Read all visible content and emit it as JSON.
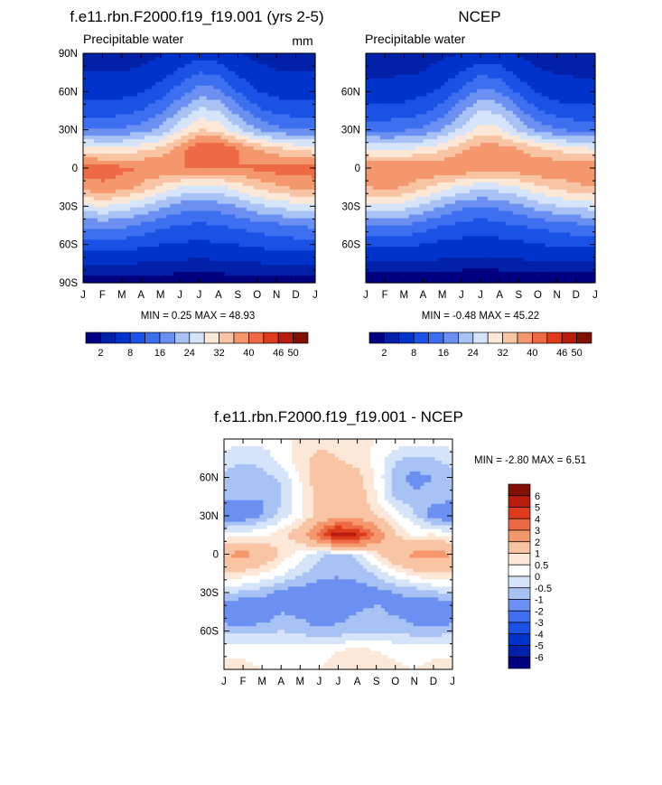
{
  "chart_data": [
    {
      "type": "heatmap",
      "id": "model",
      "title": "f.e11.rbn.F2000.f19_f19.001 (yrs 2-5)",
      "subtitle": "Precipitable water",
      "units": "mm",
      "x_tick_labels": [
        "J",
        "F",
        "M",
        "A",
        "M",
        "J",
        "J",
        "A",
        "S",
        "O",
        "N",
        "D",
        "J"
      ],
      "y_tick_labels": [
        "90N",
        "60N",
        "30N",
        "0",
        "30S",
        "60S",
        "90S"
      ],
      "y_tick_values": [
        90,
        60,
        30,
        0,
        -30,
        -60,
        -90
      ],
      "xlim": [
        0,
        12
      ],
      "ylim": [
        -90,
        90
      ],
      "min_max_text": "MIN =   0.25 MAX =  48.93",
      "min": 0.25,
      "max": 48.93,
      "colorbar_labels": [
        "2",
        "8",
        "16",
        "24",
        "32",
        "40",
        "46",
        "50"
      ],
      "colorbar_colors": [
        "#000080",
        "#0021a8",
        "#0033cc",
        "#1a52e6",
        "#3d6ff0",
        "#6b90f2",
        "#a8c2f5",
        "#d6e4fa",
        "#fde8d8",
        "#f9c4a4",
        "#f4976c",
        "#ee6a45",
        "#de3a1c",
        "#b81c0c",
        "#801000"
      ],
      "levels": [
        2,
        4,
        8,
        12,
        16,
        20,
        24,
        28,
        32,
        36,
        40,
        44,
        46,
        50
      ],
      "grid_months": [
        "J",
        "F",
        "M",
        "A",
        "M",
        "J",
        "J",
        "A",
        "S",
        "O",
        "N",
        "D",
        "J"
      ],
      "grid_lats": [
        90,
        75,
        60,
        45,
        30,
        15,
        0,
        -15,
        -30,
        -45,
        -60,
        -75,
        -90
      ],
      "values": [
        [
          2.5,
          2.5,
          2.5,
          2.8,
          3.5,
          5,
          6,
          5.5,
          4,
          3,
          2.6,
          2.5,
          2.5
        ],
        [
          4,
          4,
          4,
          4.5,
          6,
          9,
          12,
          11,
          7,
          5,
          4.2,
          4,
          4
        ],
        [
          6,
          6,
          6.5,
          7.5,
          10,
          14,
          18,
          17,
          12,
          8,
          6.5,
          6,
          6
        ],
        [
          10,
          10,
          10.5,
          12,
          15,
          20,
          25,
          24,
          18,
          13,
          11,
          10,
          10
        ],
        [
          16,
          16,
          16.5,
          18,
          21,
          27,
          32,
          31,
          25,
          20,
          17,
          16,
          16
        ],
        [
          30,
          29,
          29,
          31,
          33,
          38,
          44,
          44,
          40,
          36,
          33,
          31,
          30
        ],
        [
          42,
          42,
          41,
          40,
          40,
          40,
          40,
          40,
          40,
          41,
          42,
          42,
          42
        ],
        [
          38,
          39,
          38,
          35,
          31,
          28,
          26,
          27,
          30,
          33,
          35,
          37,
          38
        ],
        [
          27,
          28,
          27,
          24,
          21,
          18,
          17,
          18,
          20,
          23,
          25,
          26,
          27
        ],
        [
          17,
          17,
          17,
          15,
          13,
          12,
          11,
          12,
          13,
          14,
          15,
          16,
          17
        ],
        [
          10,
          10,
          10,
          9,
          8,
          7.5,
          7,
          7.5,
          8,
          9,
          9.5,
          10,
          10
        ],
        [
          4,
          4,
          4,
          3.8,
          3.5,
          3.2,
          3,
          3.2,
          3.5,
          3.8,
          4,
          4,
          4
        ],
        [
          1,
          1,
          1,
          1,
          1,
          0.8,
          0.8,
          0.8,
          1,
          1,
          1,
          1,
          1
        ]
      ]
    },
    {
      "type": "heatmap",
      "id": "ncep",
      "title": "NCEP",
      "subtitle": "Precipitable water",
      "x_tick_labels": [
        "J",
        "F",
        "M",
        "A",
        "M",
        "J",
        "J",
        "A",
        "S",
        "O",
        "N",
        "D",
        "J"
      ],
      "y_tick_labels": [
        "60N",
        "30N",
        "0",
        "30S",
        "60S"
      ],
      "y_tick_values": [
        60,
        30,
        0,
        -30,
        -60
      ],
      "xlim": [
        0,
        12
      ],
      "ylim": [
        -90,
        90
      ],
      "min_max_text": "MIN =  -0.48 MAX =  45.22",
      "min": -0.48,
      "max": 45.22,
      "colorbar_labels": [
        "2",
        "8",
        "16",
        "24",
        "32",
        "40",
        "46",
        "50"
      ],
      "colorbar_colors": [
        "#000080",
        "#0021a8",
        "#0033cc",
        "#1a52e6",
        "#3d6ff0",
        "#6b90f2",
        "#a8c2f5",
        "#d6e4fa",
        "#fde8d8",
        "#f9c4a4",
        "#f4976c",
        "#ee6a45",
        "#de3a1c",
        "#b81c0c",
        "#801000"
      ],
      "levels": [
        2,
        4,
        8,
        12,
        16,
        20,
        24,
        28,
        32,
        36,
        40,
        44,
        46,
        50
      ],
      "grid_months": [
        "J",
        "F",
        "M",
        "A",
        "M",
        "J",
        "J",
        "A",
        "S",
        "O",
        "N",
        "D",
        "J"
      ],
      "grid_lats": [
        90,
        75,
        60,
        45,
        30,
        15,
        0,
        -15,
        -30,
        -45,
        -60,
        -75,
        -90
      ],
      "values": [
        [
          2,
          2,
          2,
          2.5,
          3,
          4,
          5,
          4.5,
          3.5,
          2.5,
          2,
          2,
          2
        ],
        [
          3.5,
          3.5,
          3.5,
          4,
          5.5,
          8,
          11,
          10,
          6.5,
          4.5,
          3.8,
          3.5,
          3.5
        ],
        [
          5.5,
          5.5,
          6,
          7,
          9,
          13,
          17,
          16,
          11,
          7.5,
          6,
          5.5,
          5.5
        ],
        [
          9,
          9,
          9.5,
          11,
          14,
          19,
          24,
          23,
          17,
          12,
          10,
          9,
          9
        ],
        [
          15,
          15,
          15.5,
          17,
          20,
          25,
          30,
          29,
          23,
          19,
          16,
          15,
          15
        ],
        [
          28,
          27,
          27,
          29,
          31,
          35,
          38,
          38,
          36,
          33,
          31,
          29,
          28
        ],
        [
          40,
          40,
          40,
          40,
          40,
          40,
          39,
          39,
          39,
          40,
          40,
          40,
          40
        ],
        [
          36,
          37,
          36,
          33,
          30,
          27,
          25,
          26,
          28,
          31,
          33,
          35,
          36
        ],
        [
          26,
          27,
          26,
          23,
          20,
          17,
          16,
          17,
          19,
          22,
          24,
          25,
          26
        ],
        [
          16,
          16,
          16,
          14,
          12,
          11,
          10,
          11,
          12,
          13,
          14,
          15,
          16
        ],
        [
          9,
          9,
          9,
          8,
          7,
          6.5,
          6,
          6.5,
          7,
          8,
          8.5,
          9,
          9
        ],
        [
          3.5,
          3.5,
          3.5,
          3.2,
          3,
          2.8,
          2.6,
          2.8,
          3,
          3.2,
          3.5,
          3.5,
          3.5
        ],
        [
          0.5,
          0.5,
          0.5,
          0.5,
          0.5,
          0.5,
          0.5,
          0.5,
          0.5,
          0.5,
          0.5,
          0.5,
          0.5
        ]
      ]
    },
    {
      "type": "heatmap",
      "id": "diff",
      "title": "f.e11.rbn.F2000.f19_f19.001 - NCEP",
      "x_tick_labels": [
        "J",
        "F",
        "M",
        "A",
        "M",
        "J",
        "J",
        "A",
        "S",
        "O",
        "N",
        "D",
        "J"
      ],
      "y_tick_labels": [
        "60N",
        "30N",
        "0",
        "30S",
        "60S"
      ],
      "y_tick_values": [
        60,
        30,
        0,
        -30,
        -60
      ],
      "xlim": [
        0,
        12
      ],
      "ylim": [
        -90,
        90
      ],
      "min_max_text": "MIN =  -2.80 MAX =    6.51",
      "min": -2.8,
      "max": 6.51,
      "colorbar_labels": [
        "6",
        "5",
        "4",
        "3",
        "2",
        "1",
        "0.5",
        "0",
        "-0.5",
        "-1",
        "-2",
        "-3",
        "-4",
        "-5",
        "-6"
      ],
      "colorbar_colors": [
        "#801000",
        "#b81c0c",
        "#de3a1c",
        "#ee6a45",
        "#f4976c",
        "#f9c4a4",
        "#fde8d8",
        "#ffffff",
        "#d6e4fa",
        "#a8c2f5",
        "#6b90f2",
        "#3d6ff0",
        "#1a52e6",
        "#0033cc",
        "#0021a8",
        "#000080"
      ],
      "levels": [
        -6,
        -5,
        -4,
        -3,
        -2,
        -1,
        -0.5,
        0,
        0.5,
        1,
        2,
        3,
        4,
        5,
        6
      ],
      "grid_months": [
        "J",
        "F",
        "M",
        "A",
        "M",
        "J",
        "J",
        "A",
        "S",
        "O",
        "N",
        "D",
        "J"
      ],
      "grid_lats": [
        90,
        75,
        60,
        45,
        30,
        15,
        0,
        -15,
        -30,
        -45,
        -60,
        -75,
        -90
      ],
      "values": [
        [
          0.3,
          0.3,
          0.2,
          0.3,
          0.6,
          0.8,
          0.8,
          0.7,
          0.5,
          0.4,
          0.3,
          0.3,
          0.3
        ],
        [
          -0.3,
          -0.4,
          -0.3,
          0.2,
          0.8,
          1.2,
          1.0,
          0.8,
          0.3,
          -0.4,
          -0.6,
          -0.5,
          -0.3
        ],
        [
          -0.6,
          -0.8,
          -0.7,
          -0.4,
          0.5,
          1.5,
          1.4,
          1.2,
          0.4,
          -0.8,
          -1.2,
          -1.0,
          -0.6
        ],
        [
          -0.8,
          -0.9,
          -1.0,
          -0.6,
          0.3,
          1.3,
          1.6,
          1.5,
          0.5,
          -0.6,
          -0.9,
          -0.8,
          -0.8
        ],
        [
          -1.6,
          -1.4,
          -1.0,
          -0.3,
          0.4,
          1.2,
          1.5,
          1.4,
          1.0,
          0.3,
          -0.4,
          -1.3,
          -1.6
        ],
        [
          0.2,
          0.3,
          0.4,
          0.8,
          1.5,
          3.5,
          6.0,
          5.0,
          3.0,
          1.0,
          0.4,
          0.6,
          0.2
        ],
        [
          2.0,
          2.3,
          1.8,
          0.9,
          0.2,
          -0.4,
          -0.6,
          -0.4,
          0.8,
          1.8,
          2.2,
          2.4,
          2.0
        ],
        [
          1.0,
          0.8,
          0.5,
          0.1,
          -0.4,
          -0.8,
          -0.9,
          -0.8,
          -0.4,
          0.3,
          0.8,
          1.0,
          1.0
        ],
        [
          -0.4,
          -0.6,
          -0.8,
          -1.2,
          -1.3,
          -1.4,
          -1.4,
          -1.3,
          -1.2,
          -1.0,
          -0.9,
          -0.6,
          -0.4
        ],
        [
          -1.5,
          -2.0,
          -1.6,
          -1.0,
          -1.2,
          -1.6,
          -1.3,
          -1.0,
          -0.9,
          -1.1,
          -1.4,
          -1.9,
          -1.5
        ],
        [
          -0.7,
          -0.7,
          -0.6,
          -0.5,
          -0.6,
          -0.9,
          -0.8,
          -0.7,
          -0.6,
          -0.6,
          -0.8,
          -0.8,
          -0.7
        ],
        [
          0.4,
          0.4,
          0.3,
          0.2,
          0.2,
          0.3,
          0.5,
          0.6,
          0.5,
          0.4,
          0.3,
          0.4,
          0.4
        ],
        [
          0.6,
          0.6,
          0.5,
          0.4,
          0.4,
          0.5,
          0.7,
          0.8,
          0.7,
          0.6,
          0.5,
          0.6,
          0.6
        ]
      ]
    }
  ]
}
